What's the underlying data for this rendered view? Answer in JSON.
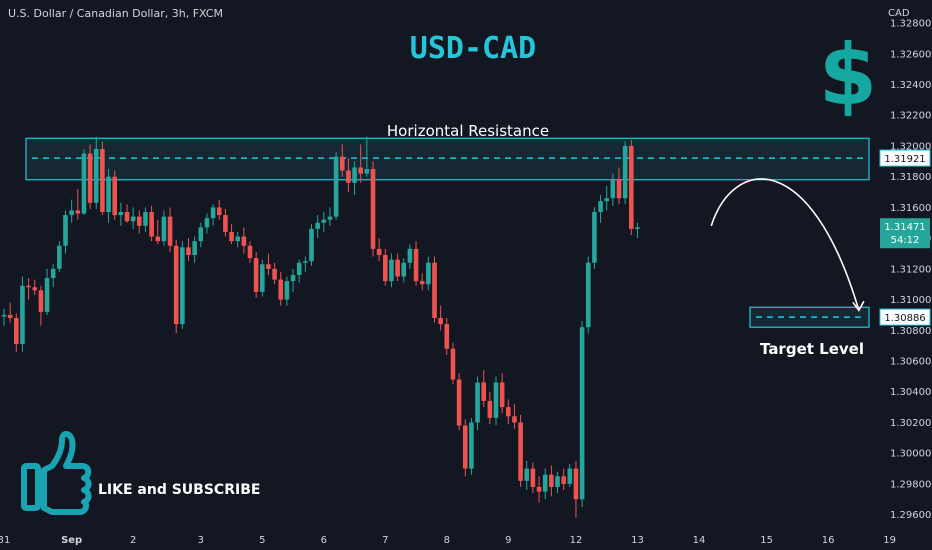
{
  "header": {
    "symbol_info": "U.S. Dollar / Canadian Dollar, 3h, FXCM",
    "title": "USD-CAD",
    "currency_unit": "CAD"
  },
  "annotations": {
    "resistance_label": "Horizontal Resistance",
    "target_label": "Target Level",
    "subscribe_label": "LIKE and SUBSCRIBE",
    "countdown": "54:12"
  },
  "colors": {
    "background": "#131722",
    "up_candle": "#26a69a",
    "down_candle": "#ef5350",
    "zone": "#26c6da",
    "title": "#26c6da",
    "thumb": "#1aa3b3",
    "dollar": "#16a8a0",
    "axis_text": "#d1d4dc",
    "current_price_bg": "#26a69a"
  },
  "chart_data": {
    "type": "candlestick",
    "y_axis": {
      "ylim": [
        1.295,
        1.3295
      ],
      "ticks": [
        "1.32800",
        "1.32600",
        "1.32400",
        "1.32200",
        "1.32000",
        "1.31800",
        "1.31600",
        "1.31400",
        "1.31200",
        "1.31000",
        "1.30800",
        "1.30600",
        "1.30400",
        "1.30200",
        "1.30000",
        "1.29800",
        "1.29600"
      ]
    },
    "x_axis": {
      "labels": [
        "31",
        "Sep",
        "2",
        "3",
        "5",
        "6",
        "7",
        "8",
        "9",
        "12",
        "13",
        "14",
        "15",
        "16",
        "19"
      ],
      "label_index": [
        0,
        11,
        21,
        32,
        42,
        52,
        62,
        72,
        82,
        93,
        103,
        113,
        124,
        134,
        144
      ]
    },
    "resistance_zone": {
      "low": 1.3178,
      "high": 1.3205,
      "level": 1.31921,
      "label": "1.31921"
    },
    "target_zone": {
      "low": 1.3082,
      "high": 1.3095,
      "level": 1.30886,
      "label": "1.30886"
    },
    "current_price": {
      "value": 1.31471,
      "label": "1.31471"
    },
    "forecast_path": [
      [
        115,
        1.3148
      ],
      [
        124,
        1.3186
      ],
      [
        139,
        1.3093
      ]
    ],
    "candles": [
      {
        "o": 1.3089,
        "h": 1.3094,
        "l": 1.3083,
        "c": 1.309
      },
      {
        "o": 1.309,
        "h": 1.3098,
        "l": 1.3085,
        "c": 1.3088
      },
      {
        "o": 1.3088,
        "h": 1.3091,
        "l": 1.3066,
        "c": 1.3071
      },
      {
        "o": 1.3071,
        "h": 1.3115,
        "l": 1.3066,
        "c": 1.3109
      },
      {
        "o": 1.3109,
        "h": 1.3114,
        "l": 1.31,
        "c": 1.3108
      },
      {
        "o": 1.3108,
        "h": 1.3113,
        "l": 1.3103,
        "c": 1.3106
      },
      {
        "o": 1.3106,
        "h": 1.3109,
        "l": 1.3083,
        "c": 1.3092
      },
      {
        "o": 1.3092,
        "h": 1.312,
        "l": 1.309,
        "c": 1.3114
      },
      {
        "o": 1.3114,
        "h": 1.3123,
        "l": 1.3108,
        "c": 1.312
      },
      {
        "o": 1.312,
        "h": 1.3138,
        "l": 1.3118,
        "c": 1.3135
      },
      {
        "o": 1.3135,
        "h": 1.3158,
        "l": 1.313,
        "c": 1.3155
      },
      {
        "o": 1.3155,
        "h": 1.3165,
        "l": 1.315,
        "c": 1.3158
      },
      {
        "o": 1.3158,
        "h": 1.3172,
        "l": 1.3152,
        "c": 1.3156
      },
      {
        "o": 1.3156,
        "h": 1.3198,
        "l": 1.3155,
        "c": 1.3195
      },
      {
        "o": 1.3195,
        "h": 1.3201,
        "l": 1.3159,
        "c": 1.3163
      },
      {
        "o": 1.3163,
        "h": 1.3206,
        "l": 1.3159,
        "c": 1.3198
      },
      {
        "o": 1.3198,
        "h": 1.3203,
        "l": 1.3155,
        "c": 1.3157
      },
      {
        "o": 1.3157,
        "h": 1.3185,
        "l": 1.315,
        "c": 1.318
      },
      {
        "o": 1.318,
        "h": 1.3184,
        "l": 1.3152,
        "c": 1.3155
      },
      {
        "o": 1.3155,
        "h": 1.3163,
        "l": 1.3148,
        "c": 1.3157
      },
      {
        "o": 1.3157,
        "h": 1.3162,
        "l": 1.315,
        "c": 1.3151
      },
      {
        "o": 1.3151,
        "h": 1.316,
        "l": 1.3146,
        "c": 1.3154
      },
      {
        "o": 1.3154,
        "h": 1.3158,
        "l": 1.3143,
        "c": 1.3148
      },
      {
        "o": 1.3148,
        "h": 1.316,
        "l": 1.3144,
        "c": 1.3157
      },
      {
        "o": 1.3157,
        "h": 1.3161,
        "l": 1.3138,
        "c": 1.3141
      },
      {
        "o": 1.3141,
        "h": 1.3152,
        "l": 1.3136,
        "c": 1.3138
      },
      {
        "o": 1.3138,
        "h": 1.3158,
        "l": 1.3135,
        "c": 1.3154
      },
      {
        "o": 1.3154,
        "h": 1.316,
        "l": 1.3131,
        "c": 1.3135
      },
      {
        "o": 1.3135,
        "h": 1.3139,
        "l": 1.3078,
        "c": 1.3084
      },
      {
        "o": 1.3084,
        "h": 1.3138,
        "l": 1.3081,
        "c": 1.3134
      },
      {
        "o": 1.3134,
        "h": 1.314,
        "l": 1.3125,
        "c": 1.3129
      },
      {
        "o": 1.3129,
        "h": 1.3141,
        "l": 1.3124,
        "c": 1.3138
      },
      {
        "o": 1.3138,
        "h": 1.315,
        "l": 1.3134,
        "c": 1.3147
      },
      {
        "o": 1.3147,
        "h": 1.3156,
        "l": 1.3143,
        "c": 1.3153
      },
      {
        "o": 1.3153,
        "h": 1.3162,
        "l": 1.3148,
        "c": 1.316
      },
      {
        "o": 1.316,
        "h": 1.3165,
        "l": 1.3152,
        "c": 1.3155
      },
      {
        "o": 1.3155,
        "h": 1.3159,
        "l": 1.3141,
        "c": 1.3144
      },
      {
        "o": 1.3144,
        "h": 1.3149,
        "l": 1.3136,
        "c": 1.3138
      },
      {
        "o": 1.3138,
        "h": 1.3144,
        "l": 1.3134,
        "c": 1.3141
      },
      {
        "o": 1.3141,
        "h": 1.3147,
        "l": 1.313,
        "c": 1.3135
      },
      {
        "o": 1.3135,
        "h": 1.3138,
        "l": 1.3124,
        "c": 1.3127
      },
      {
        "o": 1.3127,
        "h": 1.3131,
        "l": 1.3101,
        "c": 1.3105
      },
      {
        "o": 1.3105,
        "h": 1.3126,
        "l": 1.3102,
        "c": 1.3123
      },
      {
        "o": 1.3123,
        "h": 1.313,
        "l": 1.3116,
        "c": 1.312
      },
      {
        "o": 1.312,
        "h": 1.3124,
        "l": 1.311,
        "c": 1.3113
      },
      {
        "o": 1.3113,
        "h": 1.3118,
        "l": 1.3096,
        "c": 1.31
      },
      {
        "o": 1.31,
        "h": 1.3115,
        "l": 1.3096,
        "c": 1.3112
      },
      {
        "o": 1.3112,
        "h": 1.312,
        "l": 1.3105,
        "c": 1.3116
      },
      {
        "o": 1.3116,
        "h": 1.3126,
        "l": 1.3111,
        "c": 1.3124
      },
      {
        "o": 1.3124,
        "h": 1.3128,
        "l": 1.3118,
        "c": 1.3125
      },
      {
        "o": 1.3125,
        "h": 1.3149,
        "l": 1.3122,
        "c": 1.3146
      },
      {
        "o": 1.3146,
        "h": 1.3155,
        "l": 1.314,
        "c": 1.315
      },
      {
        "o": 1.315,
        "h": 1.3157,
        "l": 1.3144,
        "c": 1.3152
      },
      {
        "o": 1.3152,
        "h": 1.316,
        "l": 1.3148,
        "c": 1.3154
      },
      {
        "o": 1.3154,
        "h": 1.3196,
        "l": 1.3152,
        "c": 1.3193
      },
      {
        "o": 1.3193,
        "h": 1.3201,
        "l": 1.318,
        "c": 1.3184
      },
      {
        "o": 1.3184,
        "h": 1.3192,
        "l": 1.317,
        "c": 1.3176
      },
      {
        "o": 1.3176,
        "h": 1.319,
        "l": 1.3168,
        "c": 1.3186
      },
      {
        "o": 1.3186,
        "h": 1.3201,
        "l": 1.3176,
        "c": 1.3182
      },
      {
        "o": 1.3182,
        "h": 1.3206,
        "l": 1.318,
        "c": 1.3185
      },
      {
        "o": 1.3185,
        "h": 1.319,
        "l": 1.3128,
        "c": 1.3133
      },
      {
        "o": 1.3133,
        "h": 1.314,
        "l": 1.3125,
        "c": 1.3129
      },
      {
        "o": 1.3129,
        "h": 1.3133,
        "l": 1.3109,
        "c": 1.3112
      },
      {
        "o": 1.3112,
        "h": 1.313,
        "l": 1.3108,
        "c": 1.3126
      },
      {
        "o": 1.3126,
        "h": 1.313,
        "l": 1.3112,
        "c": 1.3115
      },
      {
        "o": 1.3115,
        "h": 1.3127,
        "l": 1.3111,
        "c": 1.3124
      },
      {
        "o": 1.3124,
        "h": 1.3136,
        "l": 1.312,
        "c": 1.3133
      },
      {
        "o": 1.3133,
        "h": 1.3138,
        "l": 1.3109,
        "c": 1.3112
      },
      {
        "o": 1.3112,
        "h": 1.3117,
        "l": 1.3106,
        "c": 1.311
      },
      {
        "o": 1.311,
        "h": 1.3128,
        "l": 1.3106,
        "c": 1.3124
      },
      {
        "o": 1.3124,
        "h": 1.3128,
        "l": 1.3085,
        "c": 1.3088
      },
      {
        "o": 1.3088,
        "h": 1.3096,
        "l": 1.308,
        "c": 1.3084
      },
      {
        "o": 1.3084,
        "h": 1.3088,
        "l": 1.3064,
        "c": 1.3068
      },
      {
        "o": 1.3068,
        "h": 1.3072,
        "l": 1.3045,
        "c": 1.3048
      },
      {
        "o": 1.3048,
        "h": 1.3052,
        "l": 1.3015,
        "c": 1.3018
      },
      {
        "o": 1.3018,
        "h": 1.3022,
        "l": 1.2985,
        "c": 1.299
      },
      {
        "o": 1.299,
        "h": 1.3023,
        "l": 1.2986,
        "c": 1.302
      },
      {
        "o": 1.302,
        "h": 1.305,
        "l": 1.3015,
        "c": 1.3046
      },
      {
        "o": 1.3046,
        "h": 1.3054,
        "l": 1.303,
        "c": 1.3034
      },
      {
        "o": 1.3034,
        "h": 1.304,
        "l": 1.3019,
        "c": 1.3023
      },
      {
        "o": 1.3023,
        "h": 1.305,
        "l": 1.3018,
        "c": 1.3046
      },
      {
        "o": 1.3046,
        "h": 1.3052,
        "l": 1.3026,
        "c": 1.303
      },
      {
        "o": 1.303,
        "h": 1.3035,
        "l": 1.3019,
        "c": 1.3024
      },
      {
        "o": 1.3024,
        "h": 1.3032,
        "l": 1.3016,
        "c": 1.302
      },
      {
        "o": 1.302,
        "h": 1.3025,
        "l": 1.2978,
        "c": 1.2982
      },
      {
        "o": 1.2982,
        "h": 1.2995,
        "l": 1.2976,
        "c": 1.299
      },
      {
        "o": 1.299,
        "h": 1.2994,
        "l": 1.2974,
        "c": 1.2978
      },
      {
        "o": 1.2978,
        "h": 1.2985,
        "l": 1.2968,
        "c": 1.2975
      },
      {
        "o": 1.2975,
        "h": 1.299,
        "l": 1.297,
        "c": 1.2986
      },
      {
        "o": 1.2986,
        "h": 1.2992,
        "l": 1.2972,
        "c": 1.2978
      },
      {
        "o": 1.2978,
        "h": 1.2988,
        "l": 1.2974,
        "c": 1.2985
      },
      {
        "o": 1.2985,
        "h": 1.299,
        "l": 1.2976,
        "c": 1.298
      },
      {
        "o": 1.298,
        "h": 1.2993,
        "l": 1.2978,
        "c": 1.299
      },
      {
        "o": 1.299,
        "h": 1.2995,
        "l": 1.2958,
        "c": 1.297
      },
      {
        "o": 1.297,
        "h": 1.3086,
        "l": 1.2965,
        "c": 1.3082
      },
      {
        "o": 1.3082,
        "h": 1.3128,
        "l": 1.3078,
        "c": 1.3124
      },
      {
        "o": 1.3124,
        "h": 1.316,
        "l": 1.312,
        "c": 1.3157
      },
      {
        "o": 1.3157,
        "h": 1.3168,
        "l": 1.315,
        "c": 1.3164
      },
      {
        "o": 1.3164,
        "h": 1.3174,
        "l": 1.3158,
        "c": 1.3166
      },
      {
        "o": 1.3166,
        "h": 1.3182,
        "l": 1.3161,
        "c": 1.3178
      },
      {
        "o": 1.3178,
        "h": 1.3186,
        "l": 1.3162,
        "c": 1.3166
      },
      {
        "o": 1.3166,
        "h": 1.3203,
        "l": 1.3162,
        "c": 1.32
      },
      {
        "o": 1.32,
        "h": 1.3204,
        "l": 1.3142,
        "c": 1.3146
      },
      {
        "o": 1.3146,
        "h": 1.315,
        "l": 1.314,
        "c": 1.3147
      }
    ]
  }
}
